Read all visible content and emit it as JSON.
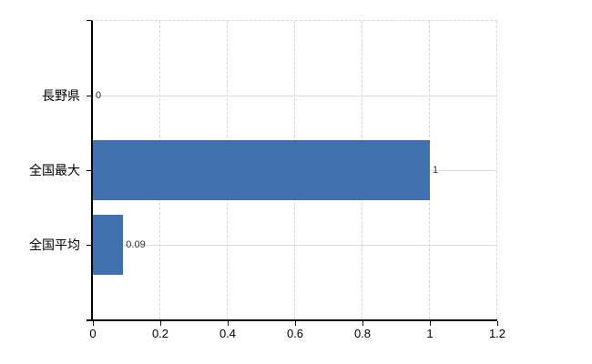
{
  "chart_data": {
    "type": "bar",
    "orientation": "horizontal",
    "title": "",
    "categories": [
      "長野県",
      "全国最大",
      "全国平均"
    ],
    "values": [
      0,
      1,
      0.09
    ],
    "value_labels": [
      "0",
      "1",
      "0.09"
    ],
    "x_ticks": [
      "0",
      "0.2",
      "0.4",
      "0.6",
      "0.8",
      "1",
      "1.2"
    ],
    "x_tick_values": [
      0,
      0.2,
      0.4,
      0.6,
      0.8,
      1,
      1.2
    ],
    "xlim": [
      0,
      1.2
    ],
    "xlabel": "",
    "ylabel": "",
    "grid": "on",
    "legend": "none",
    "bar_color": "#4170ae",
    "grid_color": "#d6d6d6",
    "axis_color": "#000000",
    "text_color": "#000000",
    "background_color": "#ffffff"
  }
}
